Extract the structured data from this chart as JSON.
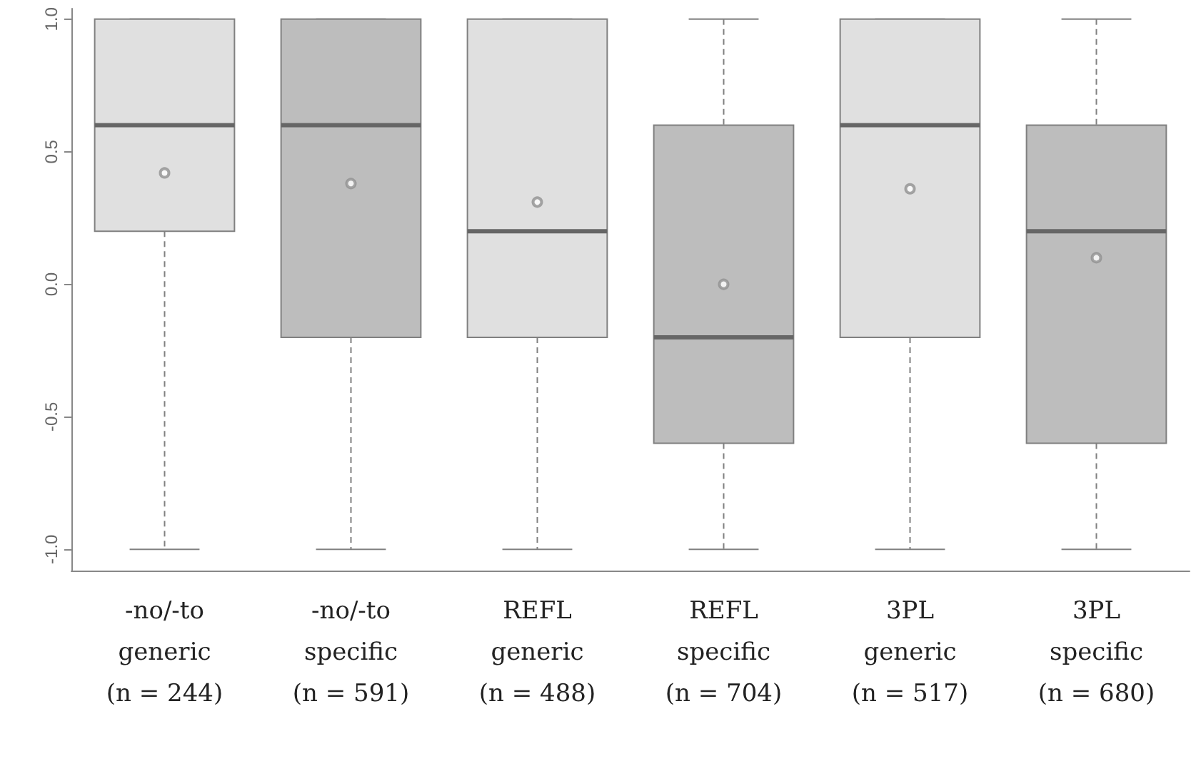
{
  "chart_data": {
    "type": "box",
    "categories": [
      "-no/-to\ngeneric\n(n = 244)",
      "-no/-to\nspecific\n(n = 591)",
      "REFL\ngeneric\n(n = 488)",
      "REFL\nspecific\n(n = 704)",
      "3PL\ngeneric\n(n = 517)",
      "3PL\nspecific\n(n = 680)"
    ],
    "colors": [
      "#e0e0e0",
      "#bdbdbd",
      "#e0e0e0",
      "#bdbdbd",
      "#e0e0e0",
      "#bdbdbd"
    ],
    "boxes": [
      {
        "low": -1,
        "q1": 0.2,
        "median": 0.6,
        "q3": 1,
        "high": 1,
        "mean": 0.42
      },
      {
        "low": -1,
        "q1": -0.2,
        "median": 0.6,
        "q3": 1,
        "high": 1,
        "mean": 0.38
      },
      {
        "low": -1,
        "q1": -0.2,
        "median": 0.2,
        "q3": 1,
        "high": 1,
        "mean": 0.31
      },
      {
        "low": -1,
        "q1": -0.6,
        "median": -0.2,
        "q3": 0.6,
        "high": 1,
        "mean": 0.0
      },
      {
        "low": -1,
        "q1": -0.2,
        "median": 0.6,
        "q3": 1,
        "high": 1,
        "mean": 0.36
      },
      {
        "low": -1,
        "q1": -0.6,
        "median": 0.2,
        "q3": 0.6,
        "high": 1,
        "mean": 0.1
      }
    ],
    "ylim": [
      -1.08,
      1.04
    ],
    "yticks": [
      {
        "value": -1,
        "label": "-1.0"
      },
      {
        "value": -0.5,
        "label": "-0.5"
      },
      {
        "value": 0,
        "label": "0.0"
      },
      {
        "value": 0.5,
        "label": "0.5"
      },
      {
        "value": 1,
        "label": "1.0"
      }
    ],
    "grid": false
  }
}
